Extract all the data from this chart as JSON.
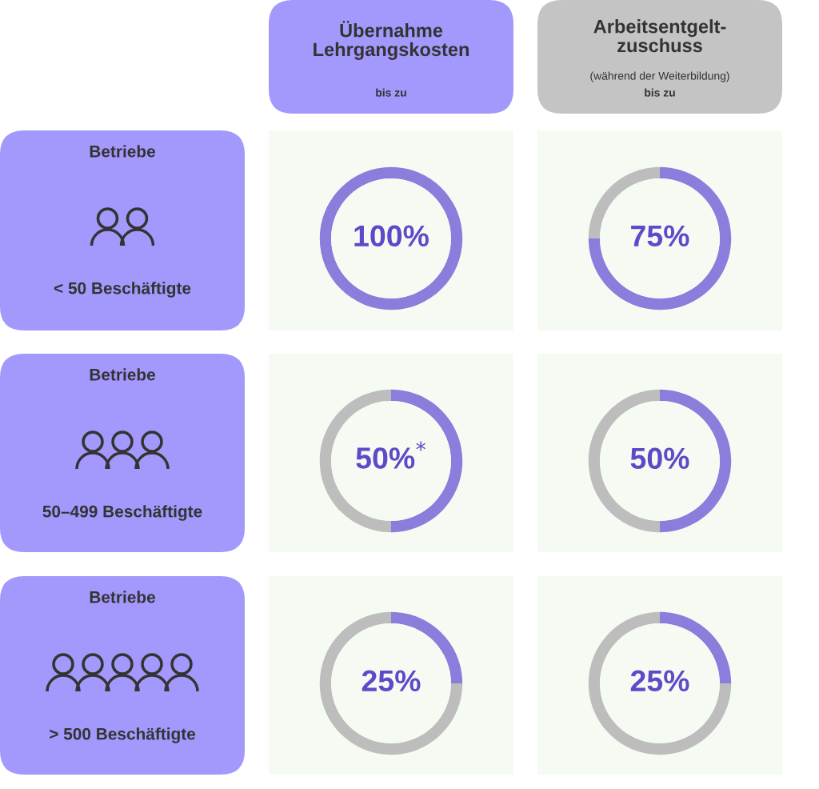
{
  "chart_data": [
    {
      "type": "other",
      "annotations": [
        "Übernahme\nLehrgangskosten",
        "bis zu",
        "Arbeitsentgelt-\nzuschuss",
        "(während der Weiterbildung)",
        "bis zu",
        "Betriebe",
        "< 50 Beschäftigte",
        "Betriebe",
        "50–499 Beschäftigte",
        "Betriebe",
        "> 500 Beschäftigte"
      ]
    },
    {
      "type": "donut",
      "categories": [
        null
      ],
      "values": [
        100
      ],
      "colors": [
        "#8a7ddc"
      ],
      "value_labels": [
        "100%"
      ]
    },
    {
      "type": "donut",
      "categories": [
        null,
        null
      ],
      "values": [
        75,
        25
      ],
      "colors": [
        "#8a7ddc",
        "#bdbdbd"
      ],
      "value_labels": [
        "75%",
        null
      ]
    },
    {
      "type": "donut",
      "categories": [
        null,
        null
      ],
      "values": [
        50,
        50
      ],
      "colors": [
        "#8a7ddc",
        "#bdbdbd"
      ],
      "value_labels": [
        "50%$^{*}$",
        null
      ]
    },
    {
      "type": "donut",
      "categories": [
        null,
        null
      ],
      "values": [
        50,
        50
      ],
      "colors": [
        "#8a7ddc",
        "#bdbdbd"
      ],
      "value_labels": [
        "50%",
        null
      ]
    },
    {
      "type": "donut",
      "categories": [
        null,
        null
      ],
      "values": [
        25,
        75
      ],
      "colors": [
        "#8a7ddc",
        "#bdbdbd"
      ],
      "value_labels": [
        "25%",
        null
      ]
    },
    {
      "type": "donut",
      "categories": [
        null,
        null
      ],
      "values": [
        25,
        75
      ],
      "colors": [
        "#8a7ddc",
        "#bdbdbd"
      ],
      "value_labels": [
        "25%",
        null
      ]
    }
  ]
}
